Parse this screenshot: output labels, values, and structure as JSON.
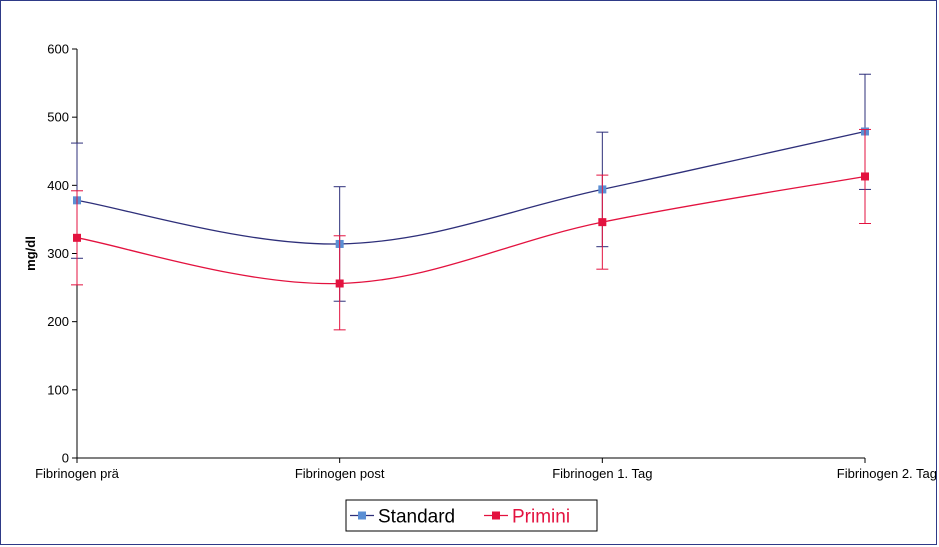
{
  "chart_data": {
    "type": "line",
    "categories": [
      "Fibrinogen prä",
      "Fibrinogen post",
      "Fibrinogen 1. Tag",
      "Fibrinogen 2. Tag"
    ],
    "ylabel": "mg/dl",
    "ylim": [
      0,
      600
    ],
    "yticks": [
      0,
      100,
      200,
      300,
      400,
      500,
      600
    ],
    "ytick_labels": [
      "0",
      "100",
      "200",
      "300",
      "400",
      "500",
      "600"
    ],
    "legend_position": "bottom-center",
    "series": [
      {
        "name": "Standard",
        "values": [
          378,
          314,
          394,
          479
        ],
        "error_low": [
          293,
          230,
          310,
          394
        ],
        "error_high": [
          462,
          398,
          478,
          563
        ],
        "line_color": "#2e2f7a",
        "marker_color": "#5b8fd4"
      },
      {
        "name": "Primini",
        "values": [
          323,
          256,
          346,
          413
        ],
        "error_low": [
          254,
          188,
          277,
          344
        ],
        "error_high": [
          392,
          326,
          415,
          482
        ],
        "line_color": "#e3123f",
        "marker_color": "#e3123f"
      }
    ]
  }
}
